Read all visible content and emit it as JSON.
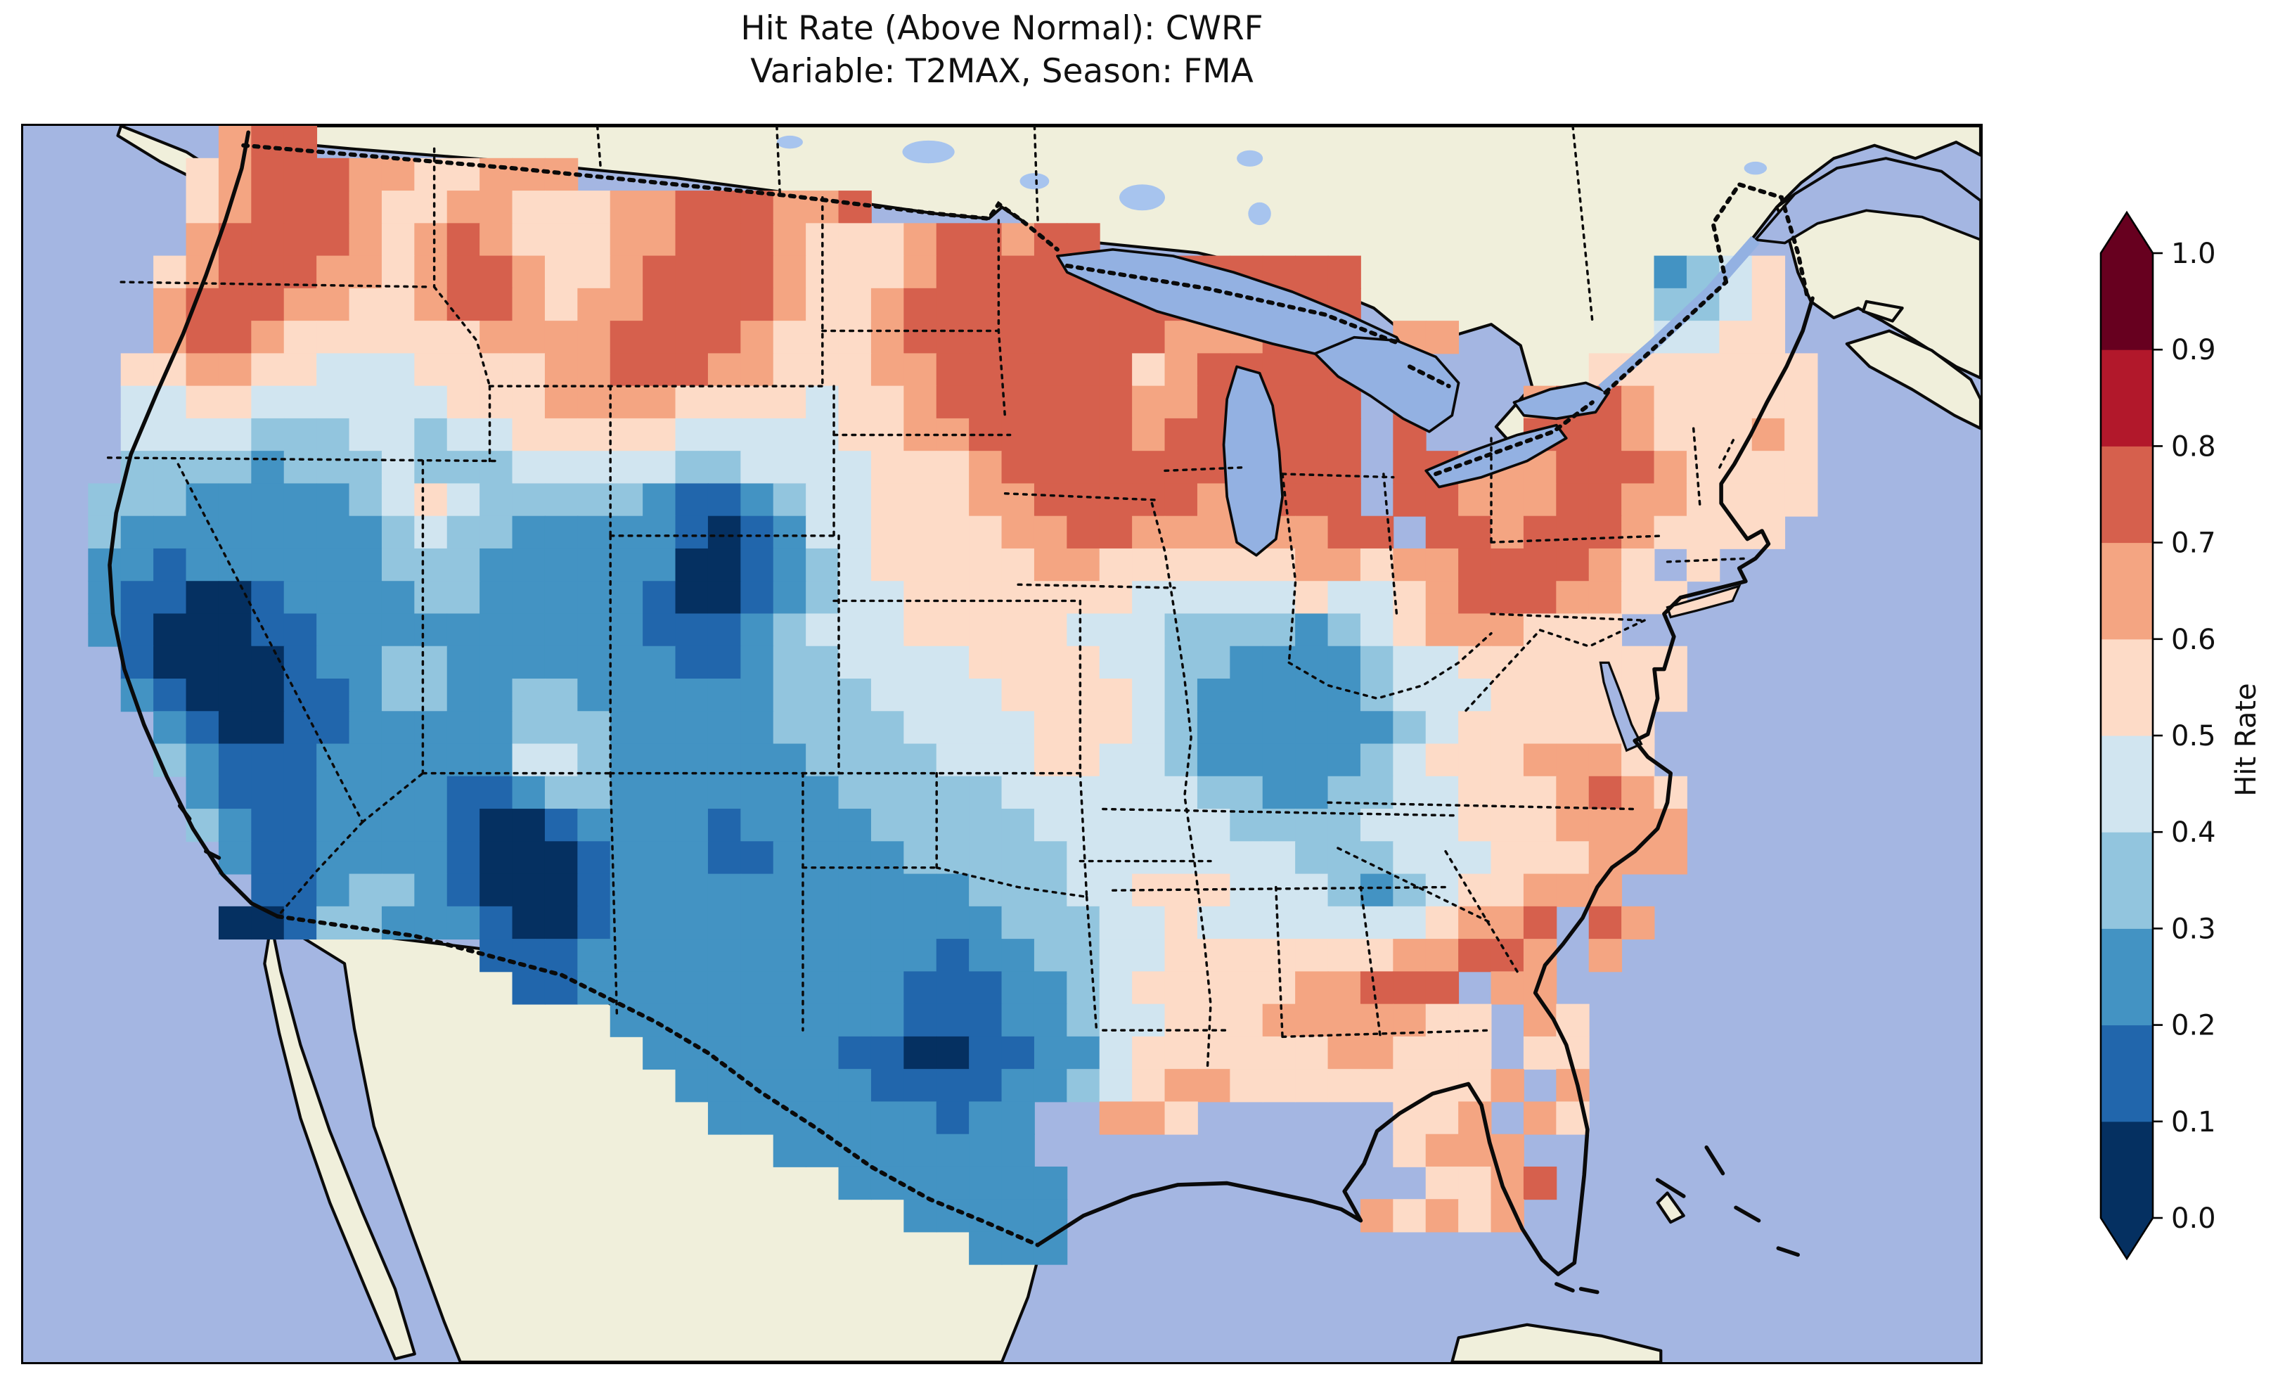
{
  "title": {
    "line1": "Hit Rate (Above Normal): CWRF",
    "line2": "Variable: T2MAX, Season: FMA"
  },
  "colorbar": {
    "label": "Hit Rate",
    "ticks": [
      "0.0",
      "0.1",
      "0.2",
      "0.3",
      "0.4",
      "0.5",
      "0.6",
      "0.7",
      "0.8",
      "0.9",
      "1.0"
    ],
    "extend": "both"
  },
  "chart_data": {
    "type": "heatmap",
    "metric": "Hit Rate (Above Normal)",
    "model": "CWRF",
    "variable": "T2MAX",
    "season": "FMA",
    "region": "Contiguous United States",
    "value_range": [
      0.0,
      1.0
    ],
    "bin_size": 0.1,
    "palette": [
      "#053061",
      "#2166ac",
      "#4393c3",
      "#92c5de",
      "#d1e5f0",
      "#fddbc7",
      "#f4a582",
      "#d6604d",
      "#b2182b",
      "#67001f"
    ],
    "map_colors": {
      "ocean": "#a4b6e2",
      "land": "#f0efdb",
      "lakes": "#93b1e2",
      "small_lakes": "#a7c4ee",
      "line": "#0a0a0a"
    },
    "grid": {
      "cols": 60,
      "rows": 38,
      "encoding": "one char per cell, west-to-east / north-to-south; '.' = no data (outside CONUS); digit d = hit rate in [d/10,(d+1)/10)",
      "rows_data": [
        "......677...................................................",
        ".....567776655666...........................................",
        ".....567776556655566777667..................................",
        ".....6777765676555667776555677677...........................",
        "....5677766567765567777655567777777777777.........2345......",
        "....6777665567765667777655677777777777777.........3345......",
        "....6776555555666677776555677777777666777 66......4455......",
        "...55665544455556677766555667777775677777 7.....5555555.....",
        "...44554444445556666555545567777776677777 7...677655555.....",
        "...44443334434455555444445566777776777777 7...777655565.....",
        "...33332333433344444334444555677777777777 7766677765555.....",
        "..333222223454333332112344555667777766777 7766677665555.....",
        "..3222222223433222221012445555667766666677 77677765555......",
        "..221222222333222222001234555556655555566566777765 5........",
        "..2110012222332222210012344555555544444544567776655.........",
        "..21000112222222222111234445555544433332345666555...........",
        "...100001223322222221123344445555443322223445555555.........",
        "...210001123322332222223334444555543222223444555555.........",
        "....2100112222233322222333344445554322222234555555..........",
        "....3211122222244322222233334445544322222345556665..........",
        ".....2111222211233222222233333444444332233445556765.........",
        ".....3211222210012222122223333344444433334445556666.........",
        "......211222210001222112222333334444444333444555666.........",
        ".......112332100012222222222233344555444323455666...........",
        "......00133222100122222222222233344544444445667 76..........",
        "..............111222222222221223344555555566776 6...........",
        "...............11222222222211122345555566777 66.............",
        "..................222222222111223445556666655 65............",
        "...................22222211001122455555566555 55............",
        "....................22222211112234566555555556 6............",
        ".....................2222222122..665......556 65............",
        ".......................22222222...........5666..............",
        ".........................2222222...........5567.............",
        "...........................22222.........65656..............",
        ".............................222............................",
        ".............................................................",
        ".............................................................",
        "............................................................."
      ]
    }
  }
}
